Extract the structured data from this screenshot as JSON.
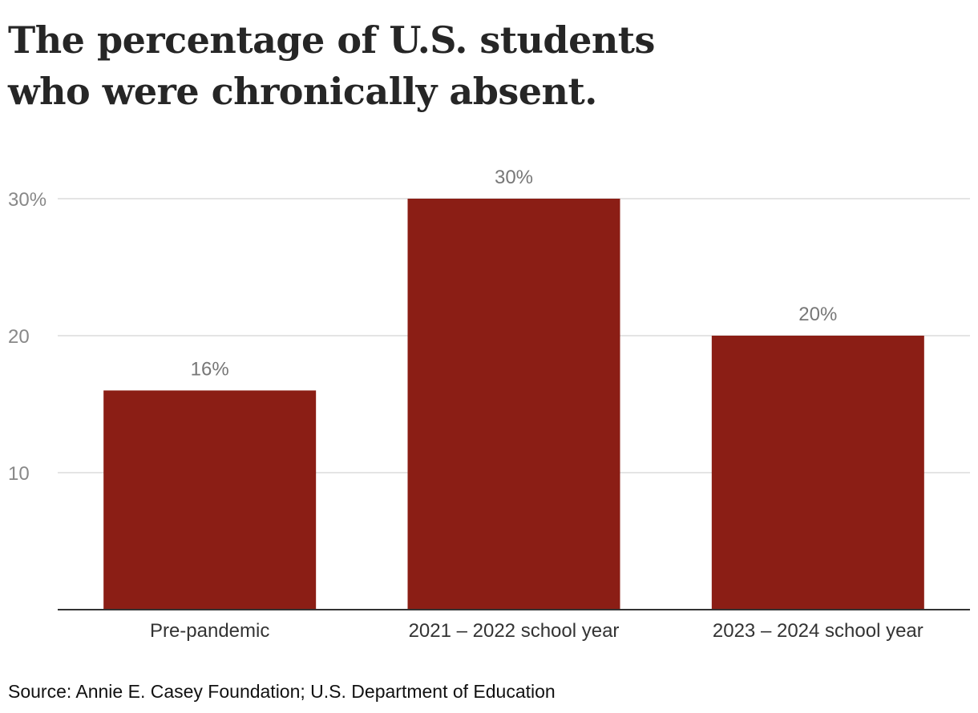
{
  "title": "The percentage of U.S. students who were chronically absent.",
  "source": "Source: Annie E. Casey Foundation; U.S. Department of Education",
  "colors": {
    "bar": "#8b1e15",
    "grid": "#dcdcdc",
    "axis": "#333333",
    "tick_label": "#888888",
    "category_label": "#333333",
    "value_label": "#777777"
  },
  "chart_data": {
    "type": "bar",
    "title": "The percentage of U.S. students who were chronically absent.",
    "xlabel": "",
    "ylabel": "",
    "categories": [
      "Pre-pandemic",
      "2021 – 2022 school year",
      "2023 – 2024 school year"
    ],
    "values": [
      16,
      30,
      20
    ],
    "value_labels": [
      "16%",
      "30%",
      "20%"
    ],
    "ylim": [
      0,
      30
    ],
    "yticks": [
      10,
      20,
      30
    ],
    "ytick_labels": [
      "10",
      "20",
      "30%"
    ],
    "grid": true,
    "unit": "%"
  }
}
